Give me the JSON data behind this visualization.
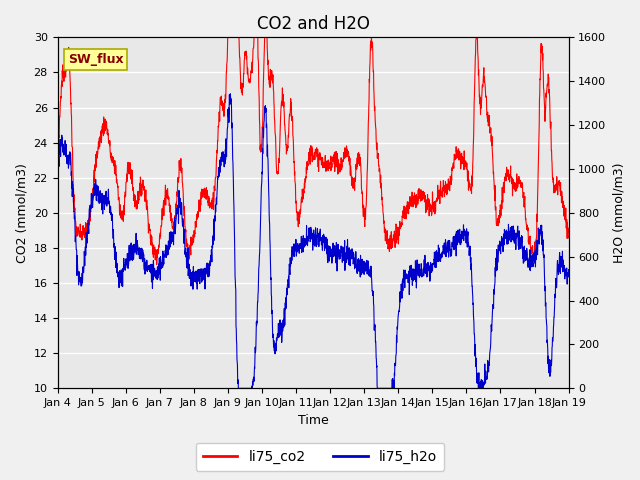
{
  "title": "CO2 and H2O",
  "xlabel": "Time",
  "ylabel_left": "CO2 (mmol/m3)",
  "ylabel_right": "H2O (mmol/m3)",
  "ylim_left": [
    10,
    30
  ],
  "ylim_right": [
    0,
    1600
  ],
  "yticks_left": [
    10,
    12,
    14,
    16,
    18,
    20,
    22,
    24,
    26,
    28,
    30
  ],
  "yticks_right": [
    0,
    200,
    400,
    600,
    800,
    1000,
    1200,
    1400,
    1600
  ],
  "xtick_labels": [
    "Jan 4",
    "Jan 5",
    "Jan 6",
    "Jan 7",
    "Jan 8",
    "Jan 9",
    "Jan 10",
    "Jan 11",
    "Jan 12",
    "Jan 13",
    "Jan 14",
    "Jan 15",
    "Jan 16",
    "Jan 17",
    "Jan 18",
    "Jan 19"
  ],
  "co2_color": "#FF0000",
  "h2o_color": "#0000CD",
  "fig_bg_color": "#F0F0F0",
  "axes_bg_color": "#E8E8E8",
  "legend_co2": "li75_co2",
  "legend_h2o": "li75_h2o",
  "annotation_text": "SW_flux",
  "annotation_bg": "#FFFF99",
  "annotation_border": "#AAAA00",
  "annotation_text_color": "#880000",
  "grid_color": "#FFFFFF",
  "title_fontsize": 12,
  "label_fontsize": 9,
  "tick_fontsize": 8,
  "linewidth": 0.8
}
